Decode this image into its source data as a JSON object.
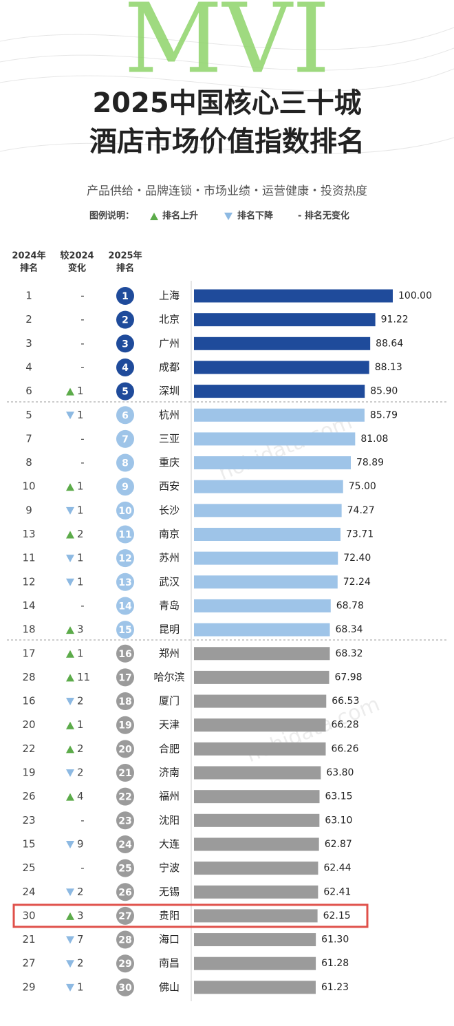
{
  "logo": "MVI",
  "title_lines": [
    "2025中国核心三十城",
    "酒店市场价值指数排名"
  ],
  "subtitle": "产品供给・品牌连锁・市场业绩・运营健康・投资热度",
  "legend": {
    "title": "图例说明：",
    "up": "排名上升",
    "down": "排名下降",
    "same": "- 排名无变化"
  },
  "watermark": "hohidata.com",
  "chart_data": {
    "type": "bar",
    "headers": {
      "rank_2024": [
        "2024年",
        "排名"
      ],
      "change": [
        "较2024",
        "变化"
      ],
      "rank_2025": [
        "2025年",
        "排名"
      ]
    },
    "categories": [
      "上海",
      "北京",
      "广州",
      "成都",
      "深圳",
      "杭州",
      "三亚",
      "重庆",
      "西安",
      "长沙",
      "南京",
      "苏州",
      "武汉",
      "青岛",
      "昆明",
      "郑州",
      "哈尔滨",
      "厦门",
      "天津",
      "合肥",
      "济南",
      "福州",
      "沈阳",
      "大连",
      "宁波",
      "无锡",
      "贵阳",
      "海口",
      "南昌",
      "佛山"
    ],
    "values": [
      100.0,
      91.22,
      88.64,
      88.13,
      85.9,
      85.79,
      81.08,
      78.89,
      75.0,
      74.27,
      73.71,
      72.4,
      72.24,
      68.78,
      68.34,
      68.32,
      67.98,
      66.53,
      66.28,
      66.26,
      63.8,
      63.15,
      63.1,
      62.87,
      62.44,
      62.41,
      62.15,
      61.3,
      61.28,
      61.23
    ],
    "value_labels": [
      "100.00",
      "91.22",
      "88.64",
      "88.13",
      "85.90",
      "85.79",
      "81.08",
      "78.89",
      "75.00",
      "74.27",
      "73.71",
      "72.40",
      "72.24",
      "68.78",
      "68.34",
      "68.32",
      "67.98",
      "66.53",
      "66.28",
      "66.26",
      "63.80",
      "63.15",
      "63.10",
      "62.87",
      "62.44",
      "62.41",
      "62.15",
      "61.30",
      "61.28",
      "61.23"
    ],
    "ranks_2025": [
      1,
      2,
      3,
      4,
      5,
      6,
      7,
      8,
      9,
      10,
      11,
      12,
      13,
      14,
      15,
      16,
      17,
      18,
      19,
      20,
      21,
      22,
      23,
      24,
      25,
      26,
      27,
      28,
      29,
      30
    ],
    "ranks_2024": [
      1,
      2,
      3,
      4,
      6,
      5,
      7,
      8,
      10,
      9,
      13,
      11,
      12,
      14,
      18,
      17,
      28,
      16,
      20,
      22,
      19,
      26,
      23,
      15,
      25,
      24,
      30,
      21,
      27,
      29
    ],
    "change": [
      0,
      0,
      0,
      0,
      1,
      -1,
      0,
      0,
      1,
      -1,
      2,
      -1,
      -1,
      0,
      3,
      1,
      11,
      -2,
      1,
      2,
      -2,
      4,
      0,
      -9,
      0,
      -2,
      3,
      -7,
      -2,
      -1
    ],
    "change_labels": [
      "-",
      "-",
      "-",
      "-",
      "1",
      "1",
      "-",
      "-",
      "1",
      "1",
      "2",
      "1",
      "1",
      "-",
      "3",
      "1",
      "11",
      "2",
      "1",
      "2",
      "2",
      "4",
      "-",
      "9",
      "-",
      "2",
      "3",
      "7",
      "2",
      "1"
    ],
    "colors": [
      "#1f4b9b",
      "#1f4b9b",
      "#1f4b9b",
      "#1f4b9b",
      "#1f4b9b",
      "#9ec4e8",
      "#9ec4e8",
      "#9ec4e8",
      "#9ec4e8",
      "#9ec4e8",
      "#9ec4e8",
      "#9ec4e8",
      "#9ec4e8",
      "#9ec4e8",
      "#9ec4e8",
      "#9b9b9b",
      "#9b9b9b",
      "#9b9b9b",
      "#9b9b9b",
      "#9b9b9b",
      "#9b9b9b",
      "#9b9b9b",
      "#9b9b9b",
      "#9b9b9b",
      "#9b9b9b",
      "#9b9b9b",
      "#9b9b9b",
      "#9b9b9b",
      "#9b9b9b",
      "#9b9b9b"
    ],
    "up_color": "#5cab4a",
    "down_color": "#8db9e2",
    "highlight_index": 26,
    "highlight_color": "#e0504a"
  }
}
